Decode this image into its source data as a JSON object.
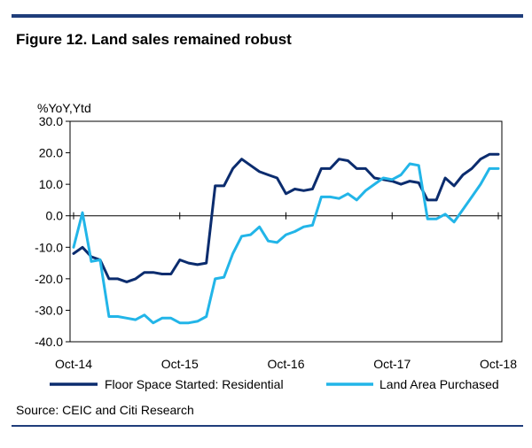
{
  "figure_title": "Figure 12. Land sales remained robust",
  "source": "Source: CEIC and Citi Research",
  "colors": {
    "rule": "#1f3d7a",
    "series1": "#0b2c6e",
    "series2": "#22b5e8"
  },
  "chart_data": {
    "type": "line",
    "unit_label": "%YoY,Ytd",
    "ylim": [
      -40,
      30
    ],
    "y_ticks": [
      "30.0",
      "20.0",
      "10.0",
      "0.0",
      "-10.0",
      "-20.0",
      "-30.0",
      "-40.0"
    ],
    "y_tick_values": [
      30,
      20,
      10,
      0,
      -10,
      -20,
      -30,
      -40
    ],
    "x_ticks": [
      "Oct-14",
      "Oct-15",
      "Oct-16",
      "Oct-17",
      "Oct-18"
    ],
    "x_tick_index": [
      0,
      12,
      24,
      36,
      48
    ],
    "x_count": 49,
    "legend_position": "bottom",
    "series": [
      {
        "name": "Floor Space Started: Residential",
        "color": "#0b2c6e",
        "values": [
          -12,
          -10,
          -13,
          -14,
          -20,
          -20,
          -21,
          -20,
          -18,
          -18,
          -18.5,
          -18.5,
          -14,
          -15,
          -15.5,
          -15,
          9.5,
          9.5,
          15,
          18,
          16,
          14,
          13,
          12,
          7,
          8.5,
          8,
          8.5,
          15,
          15,
          18,
          17.5,
          15,
          15,
          12,
          11.5,
          11,
          10,
          11,
          10.5,
          5,
          5,
          12,
          9.5,
          13,
          15,
          18,
          19.5,
          19.5
        ]
      },
      {
        "name": "Land Area Purchased",
        "color": "#22b5e8",
        "values": [
          -10,
          1,
          -14.5,
          -14,
          -32,
          -32,
          -32.5,
          -33,
          -31.5,
          -34,
          -32.5,
          -32.5,
          -34,
          -34,
          -33.5,
          -32,
          -20,
          -19.5,
          -12,
          -6.5,
          -6,
          -3.5,
          -8,
          -8.5,
          -6,
          -5,
          -3.5,
          -3,
          6,
          6,
          5.5,
          7,
          5,
          8,
          10,
          12,
          11.5,
          13,
          16.5,
          16,
          -1,
          -1,
          0.5,
          -2,
          2,
          6,
          10,
          15,
          15
        ]
      }
    ]
  }
}
